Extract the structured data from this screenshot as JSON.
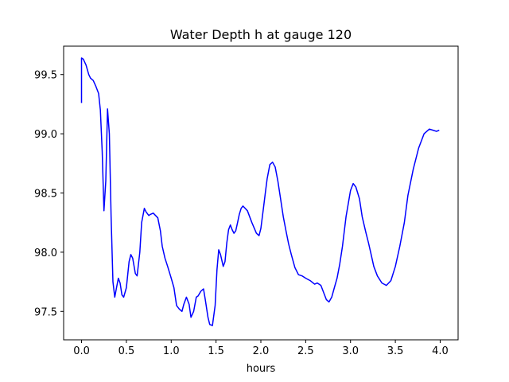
{
  "chart_data": {
    "type": "line",
    "title": "Water Depth h at gauge 120",
    "xlabel": "hours",
    "ylabel": "",
    "xlim": [
      -0.2,
      4.2
    ],
    "ylim": [
      97.26,
      99.74
    ],
    "xticks": [
      0.0,
      0.5,
      1.0,
      1.5,
      2.0,
      2.5,
      3.0,
      3.5,
      4.0
    ],
    "xtick_labels": [
      "0.0",
      "0.5",
      "1.0",
      "1.5",
      "2.0",
      "2.5",
      "3.0",
      "3.5",
      "4.0"
    ],
    "yticks": [
      97.5,
      98.0,
      98.5,
      99.0,
      99.5
    ],
    "ytick_labels": [
      "97.5",
      "98.0",
      "98.5",
      "99.0",
      "99.5"
    ],
    "grid": false,
    "legend": "none",
    "series": [
      {
        "color": "#0000ff",
        "x": [
          0.0,
          0.0,
          0.02,
          0.05,
          0.08,
          0.1,
          0.13,
          0.16,
          0.19,
          0.21,
          0.23,
          0.25,
          0.27,
          0.29,
          0.31,
          0.33,
          0.35,
          0.37,
          0.39,
          0.41,
          0.43,
          0.45,
          0.47,
          0.5,
          0.53,
          0.55,
          0.57,
          0.6,
          0.62,
          0.65,
          0.67,
          0.7,
          0.72,
          0.75,
          0.77,
          0.8,
          0.85,
          0.88,
          0.9,
          0.93,
          0.96,
          1.0,
          1.03,
          1.06,
          1.09,
          1.12,
          1.14,
          1.17,
          1.2,
          1.22,
          1.25,
          1.28,
          1.3,
          1.33,
          1.36,
          1.38,
          1.41,
          1.43,
          1.46,
          1.49,
          1.51,
          1.53,
          1.55,
          1.58,
          1.6,
          1.62,
          1.64,
          1.66,
          1.68,
          1.7,
          1.72,
          1.74,
          1.76,
          1.78,
          1.8,
          1.85,
          1.9,
          1.95,
          1.98,
          2.0,
          2.03,
          2.05,
          2.07,
          2.1,
          2.13,
          2.16,
          2.19,
          2.22,
          2.25,
          2.28,
          2.31,
          2.34,
          2.38,
          2.42,
          2.46,
          2.5,
          2.55,
          2.6,
          2.63,
          2.67,
          2.7,
          2.73,
          2.76,
          2.79,
          2.82,
          2.85,
          2.88,
          2.91,
          2.95,
          3.0,
          3.03,
          3.06,
          3.1,
          3.13,
          3.17,
          3.2,
          3.23,
          3.26,
          3.3,
          3.35,
          3.4,
          3.45,
          3.5,
          3.55,
          3.6,
          3.64,
          3.7,
          3.76,
          3.82,
          3.88,
          3.92,
          3.96,
          3.99
        ],
        "y": [
          99.26,
          99.64,
          99.63,
          99.58,
          99.5,
          99.47,
          99.45,
          99.4,
          99.34,
          99.2,
          98.85,
          98.35,
          98.6,
          99.21,
          99.0,
          98.3,
          97.75,
          97.62,
          97.7,
          97.78,
          97.74,
          97.64,
          97.62,
          97.7,
          97.92,
          97.98,
          97.95,
          97.82,
          97.8,
          98.0,
          98.25,
          98.37,
          98.34,
          98.31,
          98.32,
          98.33,
          98.29,
          98.18,
          98.05,
          97.95,
          97.88,
          97.78,
          97.7,
          97.55,
          97.52,
          97.5,
          97.56,
          97.62,
          97.56,
          97.45,
          97.5,
          97.62,
          97.63,
          97.67,
          97.69,
          97.6,
          97.45,
          97.39,
          97.38,
          97.55,
          97.85,
          98.02,
          97.98,
          97.88,
          97.92,
          98.08,
          98.19,
          98.23,
          98.19,
          98.16,
          98.18,
          98.25,
          98.32,
          98.37,
          98.39,
          98.35,
          98.25,
          98.16,
          98.14,
          98.2,
          98.38,
          98.5,
          98.62,
          98.74,
          98.76,
          98.72,
          98.6,
          98.45,
          98.3,
          98.18,
          98.07,
          97.98,
          97.87,
          97.81,
          97.8,
          97.78,
          97.76,
          97.73,
          97.74,
          97.72,
          97.66,
          97.6,
          97.58,
          97.62,
          97.7,
          97.78,
          97.9,
          98.05,
          98.3,
          98.52,
          98.58,
          98.55,
          98.45,
          98.3,
          98.17,
          98.08,
          97.98,
          97.88,
          97.8,
          97.74,
          97.72,
          97.76,
          97.88,
          98.05,
          98.25,
          98.48,
          98.7,
          98.88,
          99.0,
          99.04,
          99.03,
          99.02,
          99.03
        ]
      }
    ]
  }
}
